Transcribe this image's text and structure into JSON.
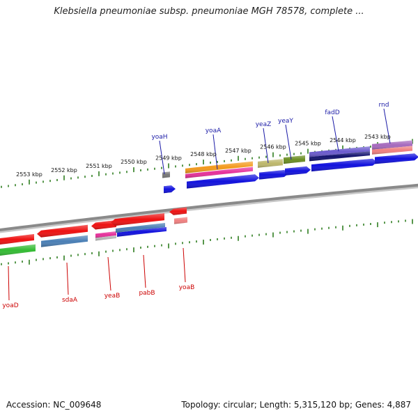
{
  "title": "Klebsiella pneumoniae subsp. pneumoniae MGH 78578, complete ...",
  "footer": {
    "accession": "Accession: NC_009648",
    "topology": "Topology: circular; Length: 5,315,120 bp; Genes: 4,887"
  },
  "colors": {
    "backbone": "#8a8a8a",
    "tick_green": "#2e7d1f",
    "label_top": "#1a1aa6",
    "label_bottom": "#cc0000",
    "red": "#ee1111",
    "blue": "#1111dd",
    "steelblue": "#4a7fb5",
    "green": "#33bb33",
    "orange": "#f39a1c",
    "magenta": "#e6309a",
    "khaki": "#bdb76b",
    "olive": "#6b8e23",
    "slateblue": "#6a5acd",
    "navy": "#12126e",
    "salmon": "#f08080",
    "gray": "#777777",
    "violet": "#a569bd",
    "silver": "#b7b7b7"
  },
  "kbp_labels": [
    "2553 kbp",
    "2552 kbp",
    "2551 kbp",
    "2550 kbp",
    "2549 kbp",
    "2548 kbp",
    "2547 kbp",
    "2546 kbp",
    "2545 kbp",
    "2544 kbp",
    "2543 kbp"
  ],
  "genes_top": [
    "yoaH",
    "yoaA",
    "yeaZ",
    "yeaY",
    "fadD",
    "rnd"
  ],
  "genes_bottom": [
    "yoaD",
    "sdaA",
    "yeaB",
    "pabB",
    "yoaB"
  ]
}
